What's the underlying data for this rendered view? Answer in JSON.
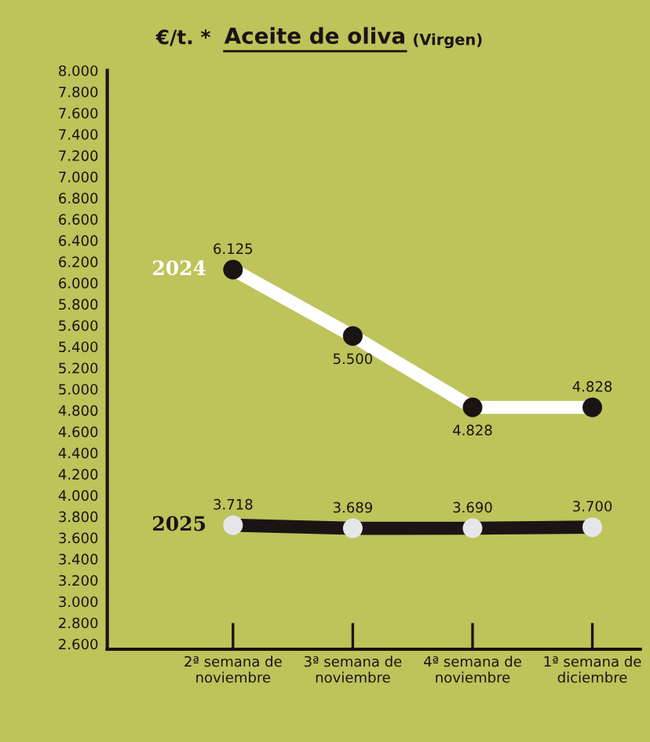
{
  "chart_data": {
    "type": "line",
    "title": "Aceite de oliva",
    "subtitle": "(Virgen)",
    "ylabel": "€/t. *",
    "categories": [
      "2ª semana de\nnoviembre",
      "3ª semana de\nnoviembre",
      "4ª semana de\nnoviembre",
      "1ª semana de\ndiciembre"
    ],
    "series": [
      {
        "name": "2024",
        "color": "#ffffff",
        "values": [
          6125,
          5500,
          4828,
          4828
        ],
        "value_labels": [
          "6.125",
          "5.500",
          "4.828",
          "4.828"
        ]
      },
      {
        "name": "2025",
        "color": "#1a1414",
        "values": [
          3718,
          3689,
          3690,
          3700
        ],
        "value_labels": [
          "3.718",
          "3.689",
          "3.690",
          "3.700"
        ]
      }
    ],
    "ylim": [
      2550,
      8000
    ],
    "yticks": [
      {
        "value": 2600,
        "label": "2.600"
      },
      {
        "value": 2800,
        "label": "2.800"
      },
      {
        "value": 3000,
        "label": "3.000"
      },
      {
        "value": 3200,
        "label": "3.200"
      },
      {
        "value": 3400,
        "label": "3.400"
      },
      {
        "value": 3600,
        "label": "3.600"
      },
      {
        "value": 3800,
        "label": "3.800"
      },
      {
        "value": 4000,
        "label": "4.000"
      },
      {
        "value": 4200,
        "label": "4.200"
      },
      {
        "value": 4400,
        "label": "4.400"
      },
      {
        "value": 4600,
        "label": "4.600"
      },
      {
        "value": 4800,
        "label": "4.800"
      },
      {
        "value": 5000,
        "label": "5.000"
      },
      {
        "value": 5200,
        "label": "5.200"
      },
      {
        "value": 5400,
        "label": "5.400"
      },
      {
        "value": 5600,
        "label": "5.600"
      },
      {
        "value": 5800,
        "label": "5.800"
      },
      {
        "value": 6000,
        "label": "6.000"
      },
      {
        "value": 6200,
        "label": "6.200"
      },
      {
        "value": 6400,
        "label": "6.400"
      },
      {
        "value": 6600,
        "label": "6.600"
      },
      {
        "value": 6800,
        "label": "6.800"
      },
      {
        "value": 7000,
        "label": "7.000"
      },
      {
        "value": 7200,
        "label": "7.200"
      },
      {
        "value": 7400,
        "label": "7.400"
      },
      {
        "value": 7600,
        "label": "7.600"
      },
      {
        "value": 7800,
        "label": "7.800"
      },
      {
        "value": 8000,
        "label": "8.000"
      }
    ],
    "marker": "circle",
    "line_style": "solid",
    "grid": false,
    "legend": false
  }
}
